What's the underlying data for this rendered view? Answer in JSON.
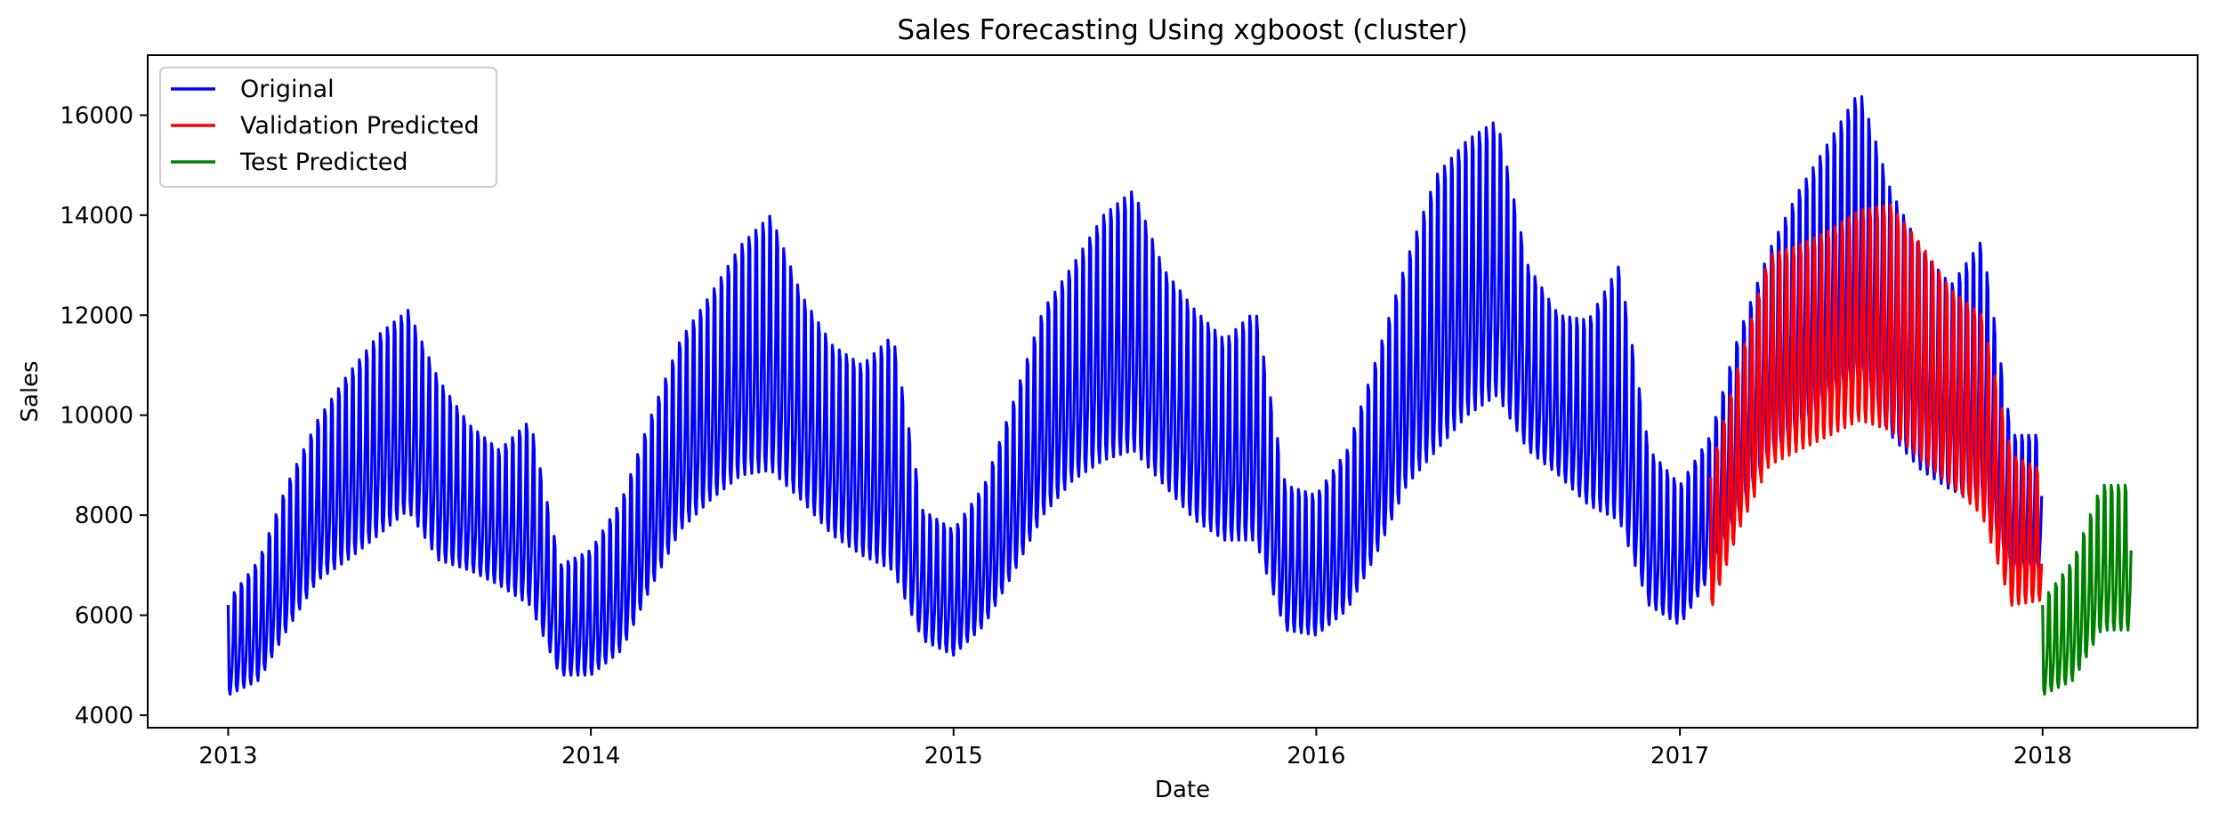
{
  "chart_data": {
    "type": "line",
    "title": "Sales Forecasting Using xgboost (cluster)",
    "xlabel": "Date",
    "ylabel": "Sales",
    "xlim": [
      "2012-10-12",
      "2018-06-06"
    ],
    "ylim": [
      3750,
      17200
    ],
    "x_ticks": [
      "2013",
      "2014",
      "2015",
      "2016",
      "2017",
      "2018"
    ],
    "x_tick_dates": [
      "2013-01-01",
      "2014-01-01",
      "2015-01-01",
      "2016-01-01",
      "2017-01-01",
      "2018-01-01"
    ],
    "y_ticks": [
      "4000",
      "6000",
      "8000",
      "10000",
      "12000",
      "14000",
      "16000"
    ],
    "y_tick_values": [
      4000,
      6000,
      8000,
      10000,
      12000,
      14000,
      16000
    ],
    "grid": false,
    "legend": {
      "position": "top-left",
      "entries": [
        "Original",
        "Validation Predicted",
        "Test Predicted"
      ]
    },
    "series": [
      {
        "name": "Original",
        "color": "#0000ff",
        "style": "weekly-oscillation",
        "envelope": {
          "dates": [
            "2013-01-01",
            "2013-02-01",
            "2013-03-01",
            "2013-04-01",
            "2013-05-01",
            "2013-06-01",
            "2013-07-01",
            "2013-08-01",
            "2013-09-01",
            "2013-10-01",
            "2013-11-01",
            "2013-12-01",
            "2014-01-01",
            "2014-02-01",
            "2014-03-01",
            "2014-04-01",
            "2014-05-01",
            "2014-06-01",
            "2014-07-01",
            "2014-08-01",
            "2014-09-01",
            "2014-10-01",
            "2014-11-01",
            "2014-12-01",
            "2015-01-01",
            "2015-02-01",
            "2015-03-01",
            "2015-04-01",
            "2015-05-01",
            "2015-06-01",
            "2015-07-01",
            "2015-08-01",
            "2015-09-01",
            "2015-10-01",
            "2015-11-01",
            "2015-12-01",
            "2016-01-01",
            "2016-02-01",
            "2016-03-01",
            "2016-04-01",
            "2016-05-01",
            "2016-06-01",
            "2016-07-01",
            "2016-08-01",
            "2016-09-01",
            "2016-10-01",
            "2016-11-01",
            "2016-12-01",
            "2017-01-01",
            "2017-02-01",
            "2017-03-01",
            "2017-04-01",
            "2017-05-01",
            "2017-06-01",
            "2017-07-01",
            "2017-08-01",
            "2017-09-01",
            "2017-10-01",
            "2017-11-01",
            "2017-12-01",
            "2017-12-31"
          ],
          "lows": [
            4400,
            4700,
            5700,
            6700,
            7100,
            7600,
            8100,
            7100,
            6900,
            6600,
            6200,
            4800,
            4800,
            5300,
            6500,
            7700,
            8300,
            8800,
            8900,
            8300,
            7600,
            7200,
            6900,
            5500,
            5200,
            5800,
            6800,
            8000,
            8700,
            9100,
            9300,
            8600,
            7900,
            7500,
            7500,
            5700,
            5600,
            6100,
            7200,
            8600,
            9300,
            10000,
            10400,
            9300,
            8800,
            8200,
            7900,
            6200,
            5800,
            6800,
            8000,
            9200,
            9700,
            10300,
            10800,
            9600,
            8900,
            8500,
            8300,
            6900,
            6900
          ],
          "highs": [
            6300,
            7100,
            8600,
            9900,
            10800,
            11600,
            12100,
            10700,
            9800,
            9300,
            9900,
            7000,
            7300,
            8300,
            9900,
            11500,
            12400,
            13400,
            14000,
            12400,
            11400,
            11000,
            11600,
            8100,
            7700,
            8600,
            10200,
            12100,
            13000,
            14000,
            14500,
            12900,
            12100,
            11500,
            12100,
            8600,
            8400,
            9300,
            11100,
            13100,
            14800,
            15500,
            15900,
            13000,
            12000,
            11900,
            13000,
            9300,
            8600,
            9600,
            11600,
            13300,
            14500,
            15500,
            16500,
            14500,
            13300,
            12600,
            13500,
            9600,
            9600
          ]
        }
      },
      {
        "name": "Validation Predicted",
        "color": "#ff0000",
        "style": "weekly-oscillation",
        "envelope": {
          "dates": [
            "2017-02-01",
            "2017-03-01",
            "2017-04-01",
            "2017-05-01",
            "2017-06-01",
            "2017-07-01",
            "2017-08-01",
            "2017-09-01",
            "2017-10-01",
            "2017-11-01",
            "2017-12-01",
            "2017-12-31"
          ],
          "lows": [
            6100,
            7700,
            9000,
            9300,
            9600,
            9900,
            9700,
            9100,
            8600,
            8000,
            6200,
            6300
          ],
          "highs": [
            8900,
            11000,
            13200,
            13400,
            13700,
            14100,
            14200,
            13400,
            12500,
            12000,
            9200,
            8900
          ]
        }
      },
      {
        "name": "Test Predicted",
        "color": "#008000",
        "style": "weekly-oscillation",
        "envelope": {
          "dates": [
            "2018-01-01",
            "2018-02-01",
            "2018-03-01",
            "2018-03-31"
          ],
          "lows": [
            4400,
            4700,
            5700,
            5700
          ],
          "highs": [
            6300,
            7100,
            8600,
            8600
          ]
        }
      }
    ]
  }
}
